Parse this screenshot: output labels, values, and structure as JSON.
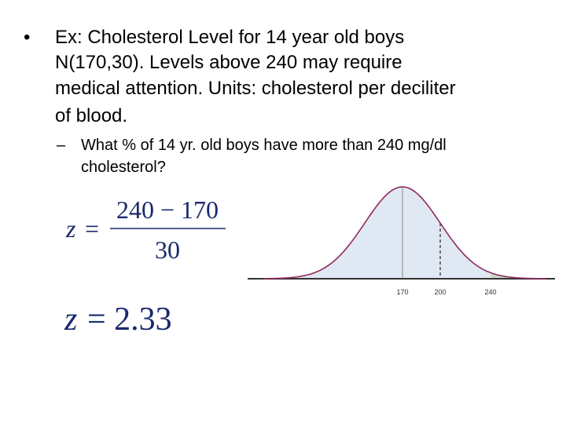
{
  "slide": {
    "bullet": {
      "marker": "•",
      "lines": [
        "Ex: Cholesterol Level for 14 year old boys",
        "N(170,30).  Levels above 240 may require",
        "medical attention. Units: cholesterol per deciliter",
        "of blood."
      ]
    },
    "sub_bullet": {
      "marker": "–",
      "lines": [
        "What % of 14 yr. old boys have more than 240 mg/dl",
        "cholesterol?"
      ]
    },
    "formula_1": {
      "lhs_var": "z",
      "equals": "=",
      "numerator": "240 − 170",
      "denominator": "30"
    },
    "formula_2": {
      "lhs_var": "z",
      "rhs": "= 2.33"
    },
    "curve_labels": [
      "170",
      "200",
      "240"
    ]
  }
}
